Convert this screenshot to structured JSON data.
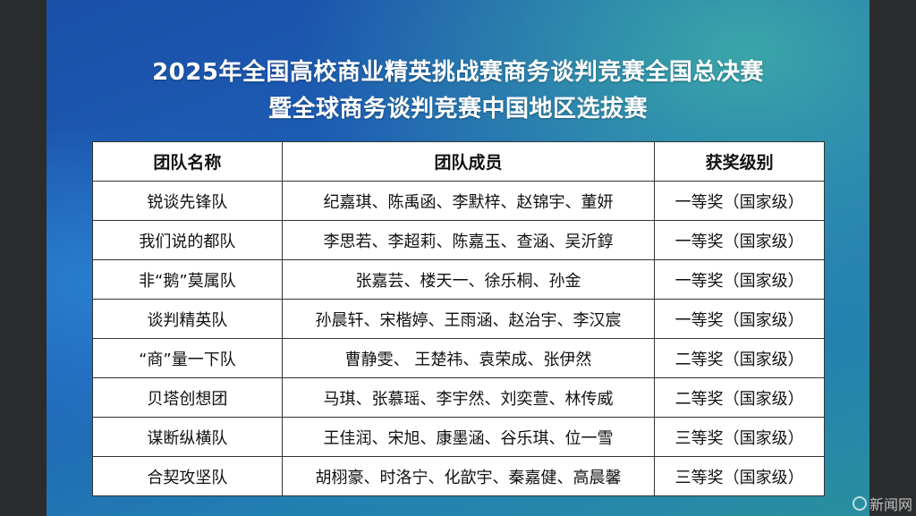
{
  "title_line1": "2025年全国高校商业精英挑战赛商务谈判竞赛全国总决赛",
  "title_line2": "暨全球商务谈判竞赛中国地区选拔赛",
  "headers": [
    "团队名称",
    "团队成员",
    "获奖级别"
  ],
  "rows": [
    [
      "锐谈先锋队",
      "纪嘉琪、陈禹函、李默梓、赵锦宇、董妍",
      "一等奖（国家级）"
    ],
    [
      "我们说的都队",
      "李思若、李超莉、陈嘉玉、查涵、吴沂錞",
      "一等奖（国家级）"
    ],
    [
      "非“鹅”莫属队",
      "张嘉芸、楼天一、徐乐桐、孙金",
      "一等奖（国家级）"
    ],
    [
      "谈判精英队",
      "孙晨轩、宋楷婷、王雨涵、赵治宇、李汉宸",
      "一等奖（国家级）"
    ],
    [
      "“商”量一下队",
      "曹静雯、 王楚祎、袁荣成、张伊然",
      "二等奖（国家级）"
    ],
    [
      "贝塔创想团",
      "马琪、张慕瑶、李宇然、刘奕萱、林传威",
      "二等奖（国家级）"
    ],
    [
      "谋断纵横队",
      "王佳润、宋旭、康墨涵、谷乐琪、位一雪",
      "三等奖（国家级）"
    ],
    [
      "合契攻坚队",
      "胡栩豪、时洛宁、化歆宇、秦嘉健、高晨馨",
      "三等奖（国家级）"
    ]
  ],
  "watermark": "新闻网"
}
